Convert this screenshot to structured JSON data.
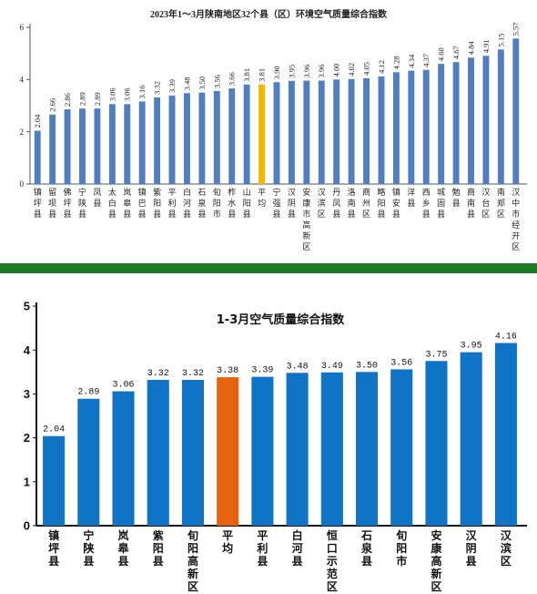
{
  "chart_data": [
    {
      "type": "bar",
      "title": "2023年1～3月陕南地区32个县（区）环境空气质量综合指数",
      "ylim": [
        0,
        6
      ],
      "yticks": [
        0,
        2,
        4,
        6
      ],
      "grid": false,
      "categories": [
        "镇坪县",
        "留坝县",
        "佛坪县",
        "宁陕县",
        "凤县",
        "太白县",
        "岚皋县",
        "镇巴县",
        "紫阳县",
        "平利县",
        "白河县",
        "石泉县",
        "旬阳市",
        "柞水县",
        "山阳县",
        "平均",
        "宁强县",
        "汉阴县",
        "安康市高新区",
        "汉滨区",
        "丹凤县",
        "洛南县",
        "商州区",
        "略阳县",
        "镇安县",
        "洋县",
        "西乡县",
        "城固县",
        "勉县",
        "商南县",
        "汉台区",
        "南郑区",
        "汉中市经开区"
      ],
      "values": [
        2.04,
        2.66,
        2.86,
        2.89,
        2.89,
        3.06,
        3.06,
        3.16,
        3.32,
        3.39,
        3.48,
        3.5,
        3.56,
        3.66,
        3.81,
        3.81,
        3.9,
        3.95,
        3.96,
        3.96,
        4.0,
        4.02,
        4.05,
        4.12,
        4.28,
        4.34,
        4.37,
        4.6,
        4.67,
        4.84,
        4.91,
        5.15,
        5.57
      ],
      "value_labels": [
        "2.04",
        "2.66",
        "2.86",
        "2.89",
        "2.89",
        "3.06",
        "3.06",
        "3.16",
        "3.32",
        "3.39",
        "3.48",
        "3.50",
        "3.56",
        "3.66",
        "3.81",
        "3.81",
        "3.90",
        "3.95",
        "3.96",
        "3.96",
        "4.00",
        "4.02",
        "4.05",
        "4.12",
        "4.28",
        "4.34",
        "4.37",
        "4.60",
        "4.67",
        "4.84",
        "4.91",
        "5.15",
        "5.57"
      ],
      "highlight_category": "平均",
      "colors": {
        "bar": "#4f7fc0",
        "highlight": "#f5b800",
        "text": "#222222"
      }
    },
    {
      "type": "bar",
      "title": "1-3月空气质量综合指数",
      "ylim": [
        0,
        5
      ],
      "yticks": [
        0,
        1,
        2,
        3,
        4,
        5
      ],
      "grid": false,
      "categories": [
        "镇坪县",
        "宁陕县",
        "岚皋县",
        "紫阳县",
        "旬阳高新区",
        "平均",
        "平利县",
        "白河县",
        "恒口示范区",
        "石泉县",
        "旬阳市",
        "安康高新区",
        "汉阴县",
        "汉滨区"
      ],
      "values": [
        2.04,
        2.89,
        3.06,
        3.32,
        3.32,
        3.38,
        3.39,
        3.48,
        3.49,
        3.5,
        3.56,
        3.75,
        3.95,
        4.16
      ],
      "value_labels": [
        "2.04",
        "2.89",
        "3.06",
        "3.32",
        "3.32",
        "3.38",
        "3.39",
        "3.48",
        "3.49",
        "3.50",
        "3.56",
        "3.75",
        "3.95",
        "4.16"
      ],
      "highlight_category": "平均",
      "colors": {
        "bar": "#0f73c6",
        "highlight": "#e8620f",
        "text": "#111111"
      }
    }
  ]
}
